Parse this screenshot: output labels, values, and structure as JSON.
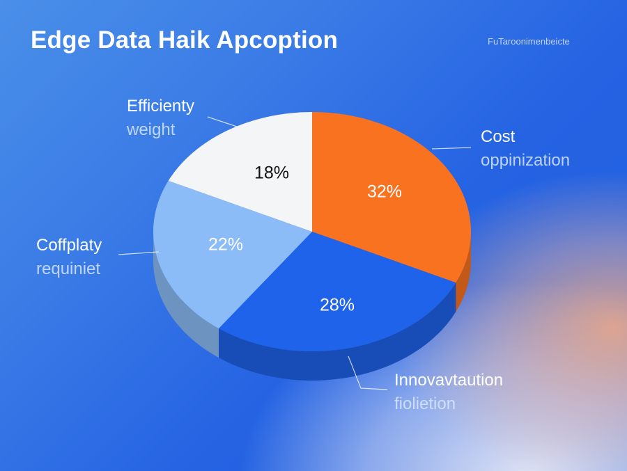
{
  "title": "Edge Data Haik Apcoption",
  "subtitle": "FuTaroonimenbeicte",
  "colors": {
    "cost": "#f9721f",
    "innovation": "#1f63ea",
    "compliance": "#8cbcf7",
    "efficiency": "#f4f5f7"
  },
  "chart_data": {
    "type": "pie",
    "title": "Edge Data Haik Apcoption",
    "slices": [
      {
        "key": "cost",
        "title": "Cost",
        "subtitle": "oppinization",
        "value": 32,
        "label": "32%",
        "color": "#f9721f",
        "label_color": "#ffffff"
      },
      {
        "key": "innovation",
        "title": "Innovavtaution",
        "subtitle": "fiolietion",
        "value": 28,
        "label": "28%",
        "color": "#1f63ea",
        "label_color": "#ffffff"
      },
      {
        "key": "compliance",
        "title": "Coffplaty",
        "subtitle": "requiniet",
        "value": 22,
        "label": "22%",
        "color": "#8cbcf7",
        "label_color": "#ffffff"
      },
      {
        "key": "efficiency",
        "title": "Efficienty",
        "subtitle": "weight",
        "value": 18,
        "label": "18%",
        "color": "#f4f5f7",
        "label_color": "#111111"
      }
    ]
  }
}
